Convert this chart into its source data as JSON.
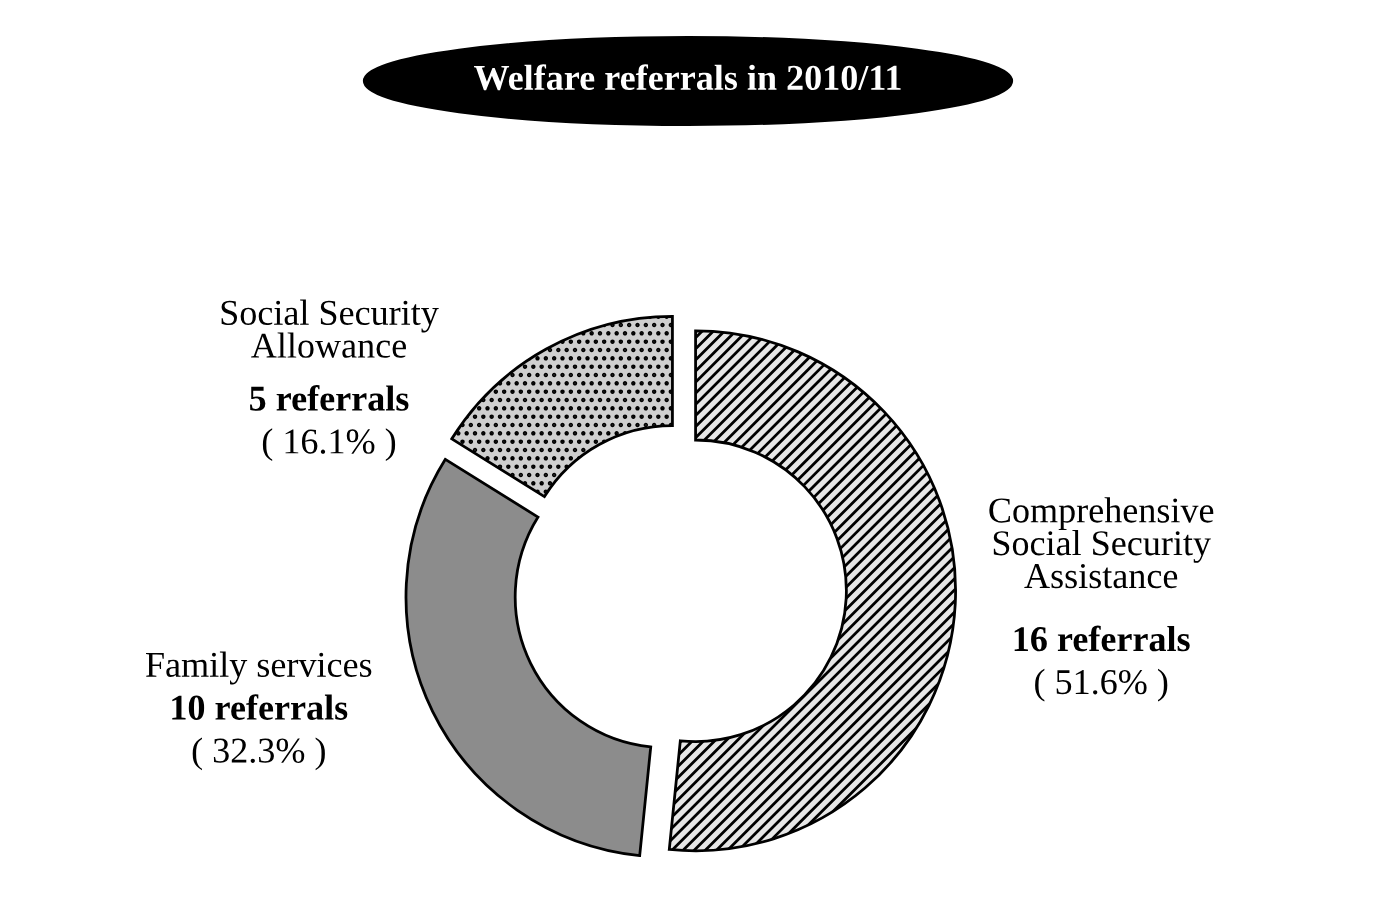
{
  "chart_data": {
    "type": "donut",
    "title": "Welfare referrals in 2010/11",
    "categories": [
      "Comprehensive\nSocial Security\nAssistance",
      "Family services",
      "Social Security\nAllowance"
    ],
    "values": [
      16,
      10,
      5
    ],
    "colors": [
      "#e6e6e6",
      "#8c8c8c",
      "#cfcfcf"
    ],
    "value_labels": [
      "16 referrals",
      "10 referrals",
      "5 referrals"
    ],
    "annotations": [
      "( 51.6% )",
      "( 32.3% )",
      "( 16.1% )"
    ]
  }
}
